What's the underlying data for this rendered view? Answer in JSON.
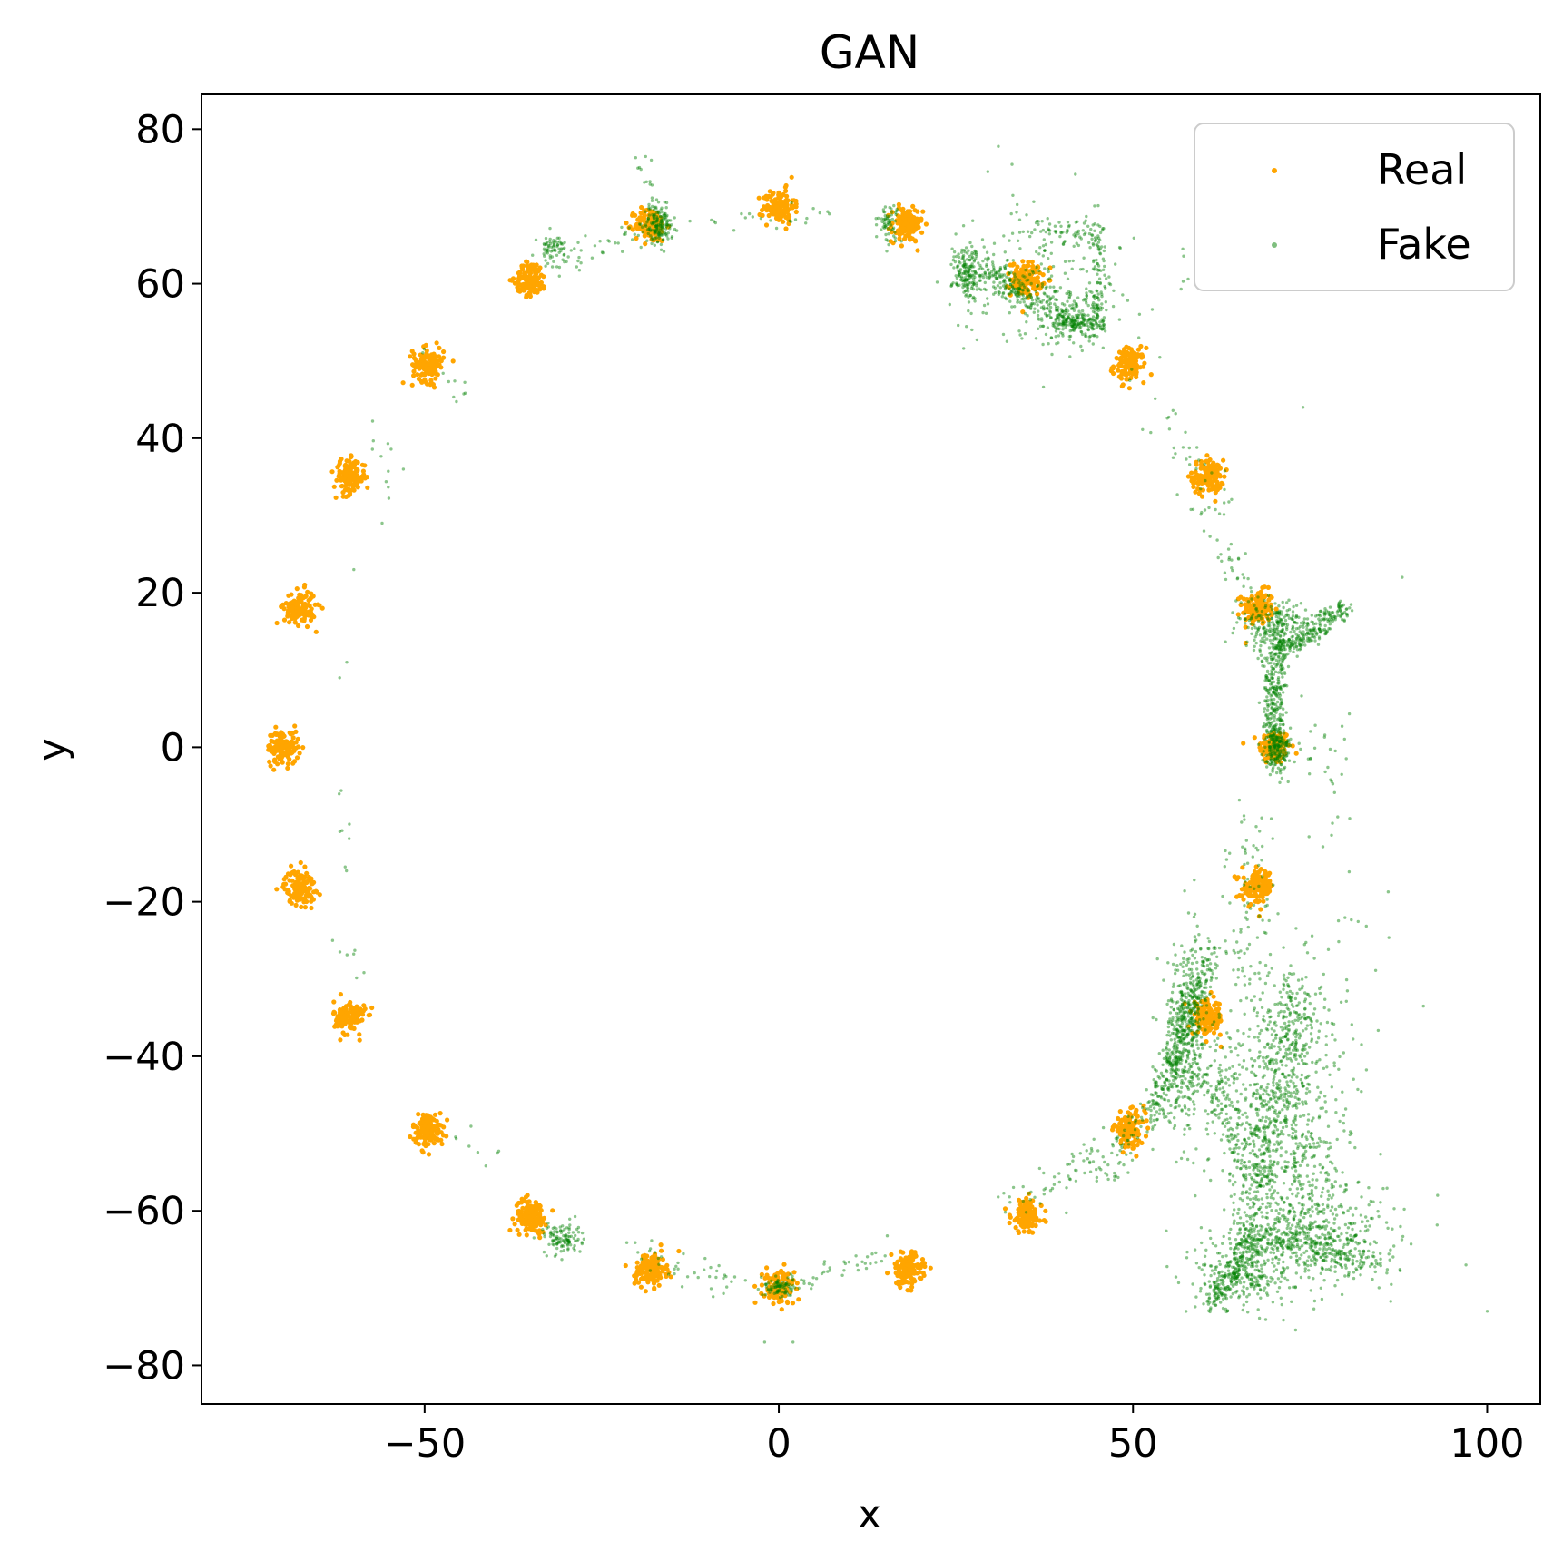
{
  "chart_data": {
    "type": "scatter",
    "title": "GAN",
    "xlabel": "x",
    "ylabel": "y",
    "xlim": [
      -81.5,
      107.5
    ],
    "ylim": [
      -85,
      84.5
    ],
    "xticks": [
      -50,
      0,
      50,
      100
    ],
    "xtick_labels": [
      "−50",
      "0",
      "50",
      "100"
    ],
    "yticks": [
      -80,
      -60,
      -40,
      -20,
      0,
      20,
      40,
      60,
      80
    ],
    "ytick_labels": [
      "−80",
      "−60",
      "−40",
      "−20",
      "0",
      "20",
      "40",
      "60",
      "80"
    ],
    "grid": false,
    "legend_position": "top-right",
    "series": [
      {
        "name": "Real",
        "color": "#FFA500",
        "alpha": 1.0,
        "description": "24 Gaussian clusters on a ring, radius about 70",
        "points_per_cluster": 130,
        "cluster_std": 1.1,
        "cluster_centers": [
          [
            70,
            0
          ],
          [
            67.6,
            18.1
          ],
          [
            60.6,
            35
          ],
          [
            49.5,
            49.5
          ],
          [
            35,
            60.6
          ],
          [
            18.1,
            67.6
          ],
          [
            0,
            70
          ],
          [
            -18.1,
            67.6
          ],
          [
            -35,
            60.6
          ],
          [
            -49.5,
            49.5
          ],
          [
            -60.6,
            35
          ],
          [
            -67.6,
            18.1
          ],
          [
            -70,
            0
          ],
          [
            -67.6,
            -18.1
          ],
          [
            -60.6,
            -35
          ],
          [
            -49.5,
            -49.5
          ],
          [
            -35,
            -60.6
          ],
          [
            -18.1,
            -67.6
          ],
          [
            0,
            -70
          ],
          [
            18.1,
            -67.6
          ],
          [
            35,
            -60.6
          ],
          [
            49.5,
            -49.5
          ],
          [
            60.6,
            -35
          ],
          [
            67.6,
            -18.1
          ]
        ]
      },
      {
        "name": "Fake",
        "color": "#008000",
        "alpha": 0.45,
        "description": "GAN samples: dense clumps near some modes, sparse trails along ring, large spread in lower right",
        "blobs": [
          {
            "center": [
              -17,
              67.5
            ],
            "std": [
              1.0,
              1.2
            ],
            "n": 160
          },
          {
            "center": [
              -32,
              64.5
            ],
            "std": [
              1.0,
              1.0
            ],
            "n": 70
          },
          {
            "center": [
              15.5,
              68
            ],
            "std": [
              0.7,
              1.2
            ],
            "n": 60
          },
          {
            "center": [
              26.5,
              61
            ],
            "std": [
              1.0,
              1.5
            ],
            "n": 130
          },
          {
            "center": [
              42,
              55
            ],
            "std": [
              2.0,
              1.0
            ],
            "n": 160
          },
          {
            "center": [
              71,
              15.5
            ],
            "std": [
              3.0,
              1.5
            ],
            "n": 220
          },
          {
            "center": [
              70.5,
              0
            ],
            "std": [
              0.9,
              1.4
            ],
            "n": 150
          },
          {
            "center": [
              70.5,
              8
            ],
            "std": [
              0.6,
              5.0
            ],
            "n": 170
          },
          {
            "center": [
              57.5,
              -37
            ],
            "std": [
              1.6,
              6.0
            ],
            "n": 380
          },
          {
            "center": [
              -30.5,
              -63.5
            ],
            "std": [
              1.3,
              1.0
            ],
            "n": 110
          },
          {
            "center": [
              0,
              -70
            ],
            "std": [
              1.0,
              0.7
            ],
            "n": 80
          },
          {
            "center": [
              66,
              -68
            ],
            "std": [
              3.5,
              2.5
            ],
            "n": 260
          },
          {
            "center": [
              74,
              -60
            ],
            "std": [
              4.0,
              4.0
            ],
            "n": 340
          },
          {
            "center": [
              69,
              -48
            ],
            "std": [
              4.0,
              8.0
            ],
            "n": 360
          },
          {
            "center": [
              72,
              -40
            ],
            "std": [
              6.0,
              10.0
            ],
            "n": 260
          },
          {
            "center": [
              80,
              -65
            ],
            "std": [
              5.0,
              3.0
            ],
            "n": 160
          },
          {
            "center": [
              38,
              61
            ],
            "std": [
              6.0,
              5.0
            ],
            "n": 220
          }
        ],
        "segments": [
          {
            "from": [
              26,
              64
            ],
            "to": [
              42,
              54
            ],
            "n": 220,
            "std": 0.9
          },
          {
            "from": [
              27,
              60
            ],
            "to": [
              47,
              56
            ],
            "n": 90,
            "std": 1.5
          },
          {
            "from": [
              45,
              67
            ],
            "to": [
              45,
              54
            ],
            "n": 90,
            "std": 0.6
          },
          {
            "from": [
              36,
              67
            ],
            "to": [
              46,
              67
            ],
            "n": 50,
            "std": 0.6
          },
          {
            "from": [
              70,
              12
            ],
            "to": [
              80,
              18
            ],
            "n": 200,
            "std": 0.7
          },
          {
            "from": [
              69,
              12
            ],
            "to": [
              70,
              -3
            ],
            "n": 150,
            "std": 0.6
          },
          {
            "from": [
              53,
              -47
            ],
            "to": [
              61,
              -26
            ],
            "n": 320,
            "std": 0.9
          },
          {
            "from": [
              61,
              -72
            ],
            "to": [
              67,
              -63
            ],
            "n": 200,
            "std": 1.0
          },
          {
            "from": [
              66,
              -63
            ],
            "to": [
              83,
              -66
            ],
            "n": 220,
            "std": 1.2
          },
          {
            "from": [
              66,
              -63
            ],
            "to": [
              73,
              -30
            ],
            "n": 240,
            "std": 1.2
          },
          {
            "from": [
              73,
              -30
            ],
            "to": [
              73,
              -55
            ],
            "n": 140,
            "std": 1.2
          },
          {
            "from": [
              60,
              -41
            ],
            "to": [
              68,
              -57
            ],
            "n": 140,
            "std": 1.5
          },
          {
            "from": [
              44,
              -55
            ],
            "to": [
              57,
              -45
            ],
            "n": 100,
            "std": 1.5
          },
          {
            "from": [
              67,
              -10
            ],
            "to": [
              66,
              -28
            ],
            "n": 70,
            "std": 2.0
          },
          {
            "from": [
              64,
              24
            ],
            "to": [
              69,
              12
            ],
            "n": 30,
            "std": 1.0
          },
          {
            "from": [
              76,
              5
            ],
            "to": [
              80,
              -13
            ],
            "n": 30,
            "std": 2.0
          },
          {
            "from": [
              -20,
              77
            ],
            "to": [
              -17,
              70
            ],
            "n": 15,
            "std": 0.5
          },
          {
            "from": [
              32,
              -59
            ],
            "to": [
              44,
              -54
            ],
            "n": 40,
            "std": 1.5
          },
          {
            "from": [
              -21,
              -65
            ],
            "to": [
              -5,
              -70
            ],
            "n": 40,
            "std": 1.0
          },
          {
            "from": [
              2,
              -70
            ],
            "to": [
              14,
              -66
            ],
            "n": 40,
            "std": 1.0
          },
          {
            "from": [
              -30,
              63
            ],
            "to": [
              -20,
              67
            ],
            "n": 30,
            "std": 0.8
          },
          {
            "from": [
              -12,
              68
            ],
            "to": [
              8,
              69
            ],
            "n": 22,
            "std": 0.6
          },
          {
            "from": [
              -50,
              52
            ],
            "to": [
              -45,
              45
            ],
            "n": 10,
            "std": 1.0
          },
          {
            "from": [
              -57,
              42
            ],
            "to": [
              -55,
              32
            ],
            "n": 10,
            "std": 1.0
          },
          {
            "from": [
              -63,
              -5
            ],
            "to": [
              -61,
              -16
            ],
            "n": 8,
            "std": 0.8
          },
          {
            "from": [
              -62,
              -25
            ],
            "to": [
              -58,
              -30
            ],
            "n": 6,
            "std": 0.8
          },
          {
            "from": [
              -46,
              -48
            ],
            "to": [
              -40,
              -54
            ],
            "n": 8,
            "std": 1.0
          },
          {
            "from": [
              52,
              46
            ],
            "to": [
              62,
              30
            ],
            "n": 40,
            "std": 1.5
          },
          {
            "from": [
              62,
              27
            ],
            "to": [
              66,
              18
            ],
            "n": 20,
            "std": 1.0
          }
        ],
        "outliers": [
          [
            -18,
            76
          ],
          [
            29.5,
            74.5
          ],
          [
            74,
            44
          ],
          [
            88,
            22
          ],
          [
            91,
            -33.5
          ],
          [
            93,
            -58
          ],
          [
            97,
            -67
          ],
          [
            100,
            -73
          ],
          [
            -2,
            -77
          ],
          [
            2,
            -77
          ],
          [
            -62,
            9
          ],
          [
            -61,
            11
          ],
          [
            -60,
            23
          ],
          [
            -56,
            29
          ],
          [
            -63,
            -25
          ],
          [
            -53,
            36
          ]
        ]
      }
    ]
  }
}
